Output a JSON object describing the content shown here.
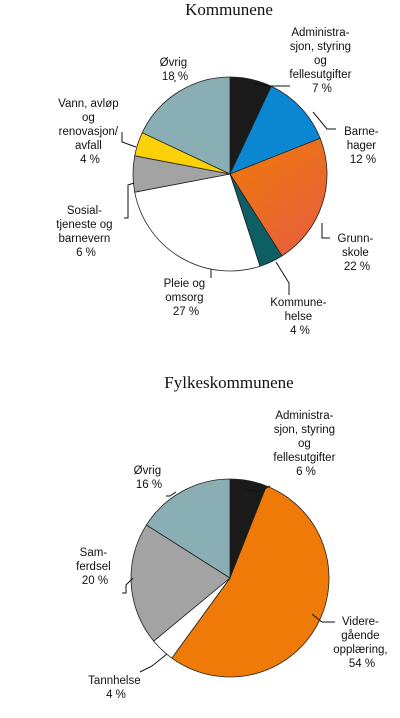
{
  "chart_data": [
    {
      "type": "pie",
      "title": "Kommunene",
      "unit": "%",
      "slices": [
        {
          "lines": [
            "Administra-",
            "sjon, styring",
            "og",
            "fellesutgifter"
          ],
          "value": 7,
          "value_label": "7 %",
          "color": "#1a1a1a"
        },
        {
          "lines": [
            "Barne-",
            "hager"
          ],
          "value": 12,
          "value_label": "12 %",
          "color": "#0b86d0"
        },
        {
          "lines": [
            "Grunn-",
            "skole"
          ],
          "value": 22,
          "value_label": "22 %",
          "color": "#ef7a07",
          "gradient_to": "#e8613a"
        },
        {
          "lines": [
            "Kommune-",
            "helse"
          ],
          "value": 4,
          "value_label": "4 %",
          "color": "#0d5f64"
        },
        {
          "lines": [
            "Pleie og",
            "omsorg"
          ],
          "value": 27,
          "value_label": "27 %",
          "color": "#ffffff"
        },
        {
          "lines": [
            "Sosial-",
            "tjeneste og",
            "barnevern"
          ],
          "value": 6,
          "value_label": "6 %",
          "color": "#a3a3a3"
        },
        {
          "lines": [
            "Vann, avløp",
            "og",
            "renovasjon/",
            "avfall"
          ],
          "value": 4,
          "value_label": "4 %",
          "color": "#fbd20a"
        },
        {
          "lines": [
            "Øvrig"
          ],
          "value": 18,
          "value_label": "18 %",
          "color": "#89aeb4"
        }
      ]
    },
    {
      "type": "pie",
      "title": "Fylkeskommunene",
      "unit": "%",
      "slices": [
        {
          "lines": [
            "Administra-",
            "sjon, styring",
            "og",
            "fellesutgifter"
          ],
          "value": 6,
          "value_label": "6 %",
          "color": "#1a1a1a"
        },
        {
          "lines": [
            "Videre-",
            "gående",
            "opplæring,"
          ],
          "value": 54,
          "value_label": "54 %",
          "color": "#ef7a07"
        },
        {
          "lines": [
            "Tannhelse"
          ],
          "value": 4,
          "value_label": "4 %",
          "color": "#ffffff"
        },
        {
          "lines": [
            "Sam-",
            "ferdsel"
          ],
          "value": 20,
          "value_label": "20 %",
          "color": "#a3a3a3"
        },
        {
          "lines": [
            "Øvrig"
          ],
          "value": 16,
          "value_label": "16 %",
          "color": "#89aeb4"
        }
      ]
    }
  ]
}
